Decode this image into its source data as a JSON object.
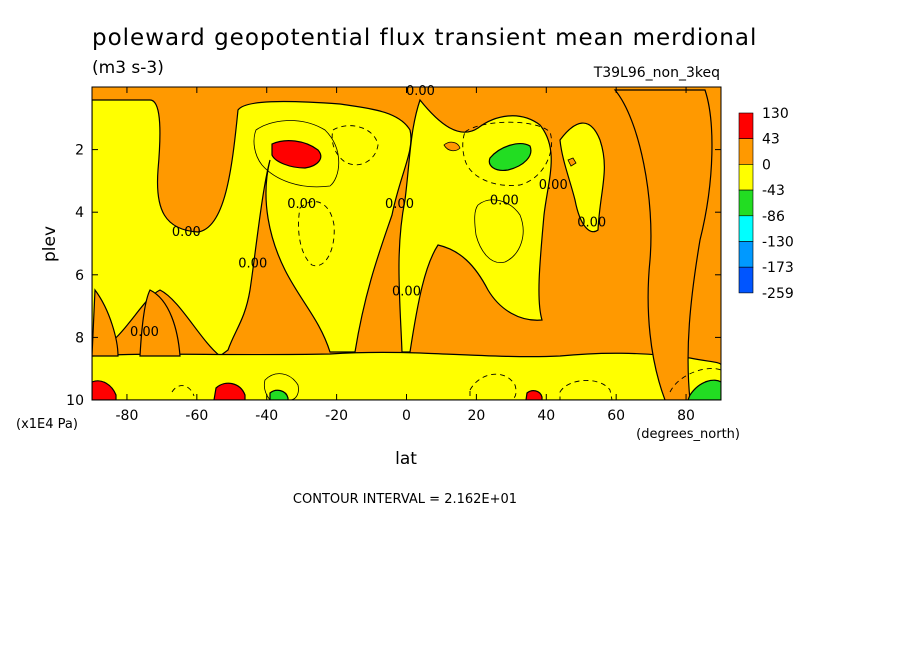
{
  "chart_data": {
    "type": "heatmap",
    "title": "poleward geopotential flux transient mean merdional",
    "units": "(m3 s-3)",
    "run_label": "T39L96_non_3keq",
    "xlabel": "lat",
    "x_units": "(degrees_north)",
    "ylabel": "plev",
    "y_units": "(x1E4 Pa)",
    "xlim": [
      -90,
      90
    ],
    "ylim": [
      10,
      0
    ],
    "x_ticks": [
      -80,
      -60,
      -40,
      -20,
      0,
      20,
      40,
      60,
      80
    ],
    "y_ticks": [
      2,
      4,
      6,
      8,
      10
    ],
    "footer": "CONTOUR INTERVAL = 2.162E+01",
    "contour_label": "0.00",
    "colorbar": {
      "levels": [
        "130",
        "43",
        "0",
        "-43",
        "-86",
        "-130",
        "-173",
        "-259"
      ],
      "colors": [
        "#ff0000",
        "#ff9900",
        "#ffff00",
        "#22dd22",
        "#00ffff",
        "#0099ff",
        "#0055ff"
      ]
    },
    "zero_label_positions": [
      {
        "lat": 4,
        "plev": 0.1
      },
      {
        "lat": -63,
        "plev": 4.6
      },
      {
        "lat": -44,
        "plev": 5.6
      },
      {
        "lat": -30,
        "plev": 3.7
      },
      {
        "lat": -2,
        "plev": 3.7
      },
      {
        "lat": 28,
        "plev": 3.6
      },
      {
        "lat": 42,
        "plev": 3.1
      },
      {
        "lat": 53,
        "plev": 4.3
      },
      {
        "lat": 0,
        "plev": 6.5
      },
      {
        "lat": -75,
        "plev": 7.8
      }
    ],
    "features": [
      {
        "lat": -34,
        "plev": 2.2,
        "value": 130
      },
      {
        "lat": 32,
        "plev": 2.3,
        "value": -60
      },
      {
        "lat": -87,
        "plev": 9.8,
        "value": 130
      },
      {
        "lat": -50,
        "plev": 9.8,
        "value": 130
      },
      {
        "lat": 36,
        "plev": 9.9,
        "value": 130
      },
      {
        "lat": -37,
        "plev": 9.9,
        "value": -60
      },
      {
        "lat": 86,
        "plev": 9.8,
        "value": -60
      }
    ]
  }
}
